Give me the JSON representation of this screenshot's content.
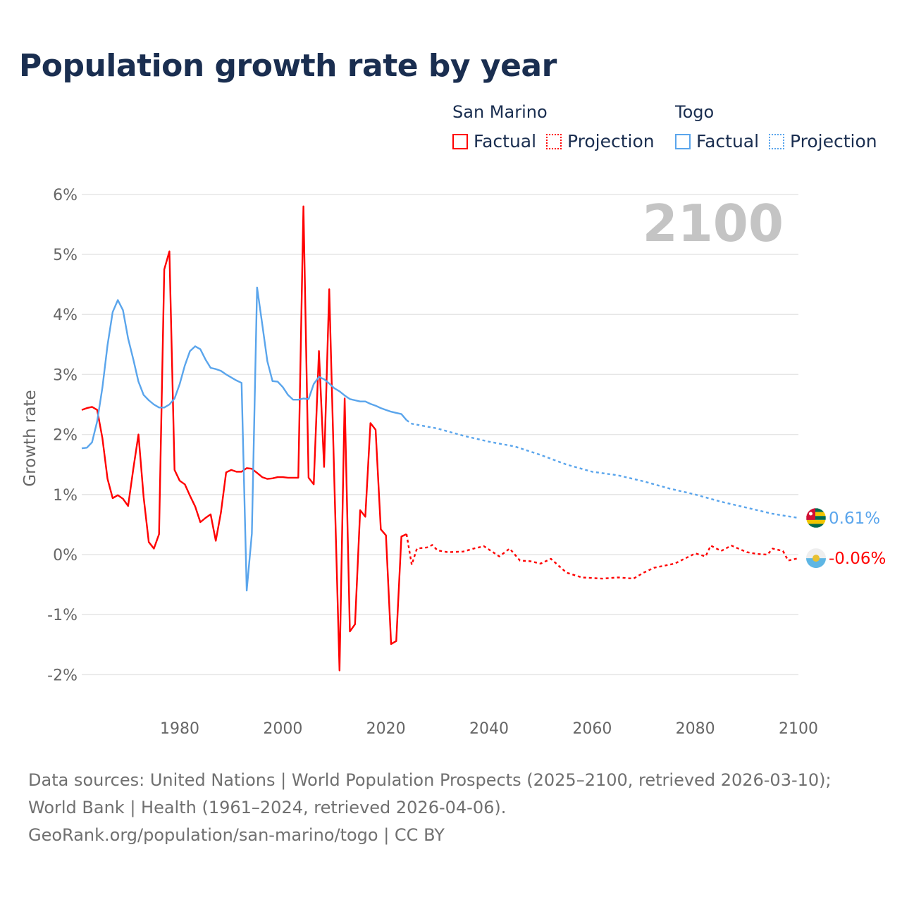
{
  "chart_data": {
    "type": "line",
    "title": "Population growth rate by year",
    "xlabel": "",
    "ylabel": "Growth rate",
    "xlim": [
      1961,
      2100
    ],
    "ylim": [
      -2.5,
      6
    ],
    "x_ticks": [
      "1980",
      "2000",
      "2020",
      "2040",
      "2060",
      "2080",
      "2100"
    ],
    "y_ticks": [
      "-2%",
      "-1%",
      "0%",
      "1%",
      "2%",
      "3%",
      "4%",
      "5%",
      "6%"
    ],
    "grid": true,
    "watermark_year": "2100",
    "legend": {
      "placement": "top-right",
      "groups": [
        {
          "name": "San Marino",
          "factual": "Factual",
          "projection": "Projection"
        },
        {
          "name": "Togo",
          "factual": "Factual",
          "projection": "Projection"
        }
      ]
    },
    "series": [
      {
        "name": "San Marino",
        "kind": "factual",
        "color": "#ff0000",
        "x": [
          1961,
          1962,
          1963,
          1964,
          1965,
          1966,
          1967,
          1968,
          1969,
          1970,
          1971,
          1972,
          1973,
          1974,
          1975,
          1976,
          1977,
          1978,
          1979,
          1980,
          1981,
          1982,
          1983,
          1984,
          1985,
          1986,
          1987,
          1988,
          1989,
          1990,
          1991,
          1992,
          1993,
          1994,
          1995,
          1996,
          1997,
          1998,
          1999,
          2000,
          2001,
          2002,
          2003,
          2004,
          2005,
          2006,
          2007,
          2008,
          2009,
          2010,
          2011,
          2012,
          2013,
          2014,
          2015,
          2016,
          2017,
          2018,
          2019,
          2020,
          2021,
          2022,
          2023,
          2024
        ],
        "y": [
          2.41,
          2.44,
          2.46,
          2.41,
          1.94,
          1.26,
          0.94,
          0.99,
          0.93,
          0.81,
          1.43,
          2.0,
          0.96,
          0.21,
          0.1,
          0.34,
          4.75,
          5.05,
          1.41,
          1.23,
          1.17,
          0.98,
          0.8,
          0.54,
          0.61,
          0.67,
          0.23,
          0.7,
          1.37,
          1.41,
          1.38,
          1.38,
          1.44,
          1.43,
          1.36,
          1.29,
          1.26,
          1.27,
          1.29,
          1.29,
          1.28,
          1.28,
          1.28,
          5.8,
          1.28,
          1.17,
          3.39,
          1.46,
          4.42,
          1.2,
          -1.93,
          2.6,
          -1.28,
          -1.16,
          0.74,
          0.63,
          2.19,
          2.08,
          0.42,
          0.32,
          -1.49,
          -1.44,
          0.3,
          0.34
        ]
      },
      {
        "name": "San Marino",
        "kind": "projection",
        "color": "#ff0000",
        "x": [
          2024,
          2025,
          2026,
          2028,
          2029,
          2030,
          2032,
          2035,
          2037,
          2039,
          2042,
          2044,
          2046,
          2048,
          2050,
          2052,
          2055,
          2058,
          2062,
          2065,
          2068,
          2070,
          2072,
          2076,
          2080,
          2082,
          2083,
          2085,
          2087,
          2090,
          2092,
          2094,
          2095,
          2097,
          2098,
          2100
        ],
        "y": [
          0.34,
          -0.17,
          0.1,
          0.12,
          0.16,
          0.07,
          0.04,
          0.05,
          0.1,
          0.14,
          -0.03,
          0.1,
          -0.1,
          -0.11,
          -0.15,
          -0.07,
          -0.3,
          -0.38,
          -0.4,
          -0.38,
          -0.4,
          -0.3,
          -0.22,
          -0.15,
          0.02,
          -0.03,
          0.15,
          0.06,
          0.15,
          0.04,
          0.01,
          0.0,
          0.1,
          0.06,
          -0.1,
          -0.06
        ]
      },
      {
        "name": "Togo",
        "kind": "factual",
        "color": "#5aa5ec",
        "x": [
          1961,
          1962,
          1963,
          1964,
          1965,
          1966,
          1967,
          1968,
          1969,
          1970,
          1971,
          1972,
          1973,
          1974,
          1975,
          1976,
          1977,
          1978,
          1979,
          1980,
          1981,
          1982,
          1983,
          1984,
          1985,
          1986,
          1987,
          1988,
          1989,
          1990,
          1991,
          1992,
          1993,
          1994,
          1995,
          1996,
          1997,
          1998,
          1999,
          2000,
          2001,
          2002,
          2003,
          2004,
          2005,
          2006,
          2007,
          2008,
          2009,
          2010,
          2011,
          2012,
          2013,
          2014,
          2015,
          2016,
          2017,
          2018,
          2019,
          2020,
          2021,
          2022,
          2023,
          2024
        ],
        "y": [
          1.77,
          1.78,
          1.87,
          2.22,
          2.78,
          3.49,
          4.04,
          4.24,
          4.07,
          3.6,
          3.25,
          2.88,
          2.66,
          2.57,
          2.5,
          2.45,
          2.45,
          2.5,
          2.6,
          2.84,
          3.15,
          3.39,
          3.47,
          3.42,
          3.25,
          3.11,
          3.09,
          3.06,
          3.0,
          2.95,
          2.9,
          2.86,
          -0.6,
          0.35,
          4.45,
          3.84,
          3.22,
          2.89,
          2.88,
          2.79,
          2.66,
          2.58,
          2.58,
          2.6,
          2.59,
          2.84,
          2.96,
          2.92,
          2.85,
          2.77,
          2.72,
          2.65,
          2.59,
          2.57,
          2.55,
          2.55,
          2.51,
          2.48,
          2.44,
          2.41,
          2.38,
          2.36,
          2.34,
          2.24
        ]
      },
      {
        "name": "Togo",
        "kind": "projection",
        "color": "#5aa5ec",
        "x": [
          2024,
          2025,
          2030,
          2035,
          2040,
          2045,
          2050,
          2055,
          2060,
          2065,
          2070,
          2075,
          2080,
          2085,
          2090,
          2095,
          2100
        ],
        "y": [
          2.24,
          2.18,
          2.1,
          1.98,
          1.88,
          1.8,
          1.66,
          1.5,
          1.38,
          1.32,
          1.22,
          1.1,
          1.0,
          0.88,
          0.78,
          0.68,
          0.61
        ]
      }
    ],
    "end_labels": [
      {
        "name": "Togo",
        "text": "0.61%",
        "value": 0.61,
        "color": "#5aa5ec"
      },
      {
        "name": "San Marino",
        "text": "-0.06%",
        "value": -0.06,
        "color": "#ff0000"
      }
    ]
  },
  "footer": {
    "sources": "Data sources: United Nations | World Population Prospects (2025–2100, retrieved 2026-03-10); World Bank | Health (1961–2024, retrieved 2026-04-06).",
    "credit": "GeoRank.org/population/san-marino/togo | CC BY"
  }
}
